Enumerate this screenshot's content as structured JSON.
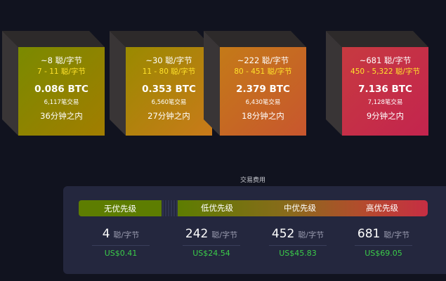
{
  "blocks": [
    {
      "fee_median": "~8 聪/字节",
      "fee_range": "7 - 11 聪/字节",
      "total": "0.086 BTC",
      "tx_count": "6,117笔交易",
      "eta": "36分钟之内",
      "gradient_from": "#7a8a00",
      "gradient_to": "#a27d00"
    },
    {
      "fee_median": "~30 聪/字节",
      "fee_range": "11 - 80 聪/字节",
      "total": "0.353 BTC",
      "tx_count": "6,560笔交易",
      "eta": "27分钟之内",
      "gradient_from": "#9a8a00",
      "gradient_to": "#c97a1a"
    },
    {
      "fee_median": "~222 聪/字节",
      "fee_range": "80 - 451 聪/字节",
      "total": "2.379 BTC",
      "tx_count": "6,430笔交易",
      "eta": "18分钟之内",
      "gradient_from": "#c47a18",
      "gradient_to": "#c8562e"
    },
    {
      "fee_median": "~681 聪/字节",
      "fee_range": "450 - 5,322 聪/字节",
      "total": "7.136 BTC",
      "tx_count": "7,128笔交易",
      "eta": "9分钟之内",
      "gradient_from": "#c63a40",
      "gradient_to": "#c4244e"
    }
  ],
  "fees": {
    "title": "交易费用",
    "priority_labels": {
      "none": "无优先级",
      "low": "低优先级",
      "medium": "中优先级",
      "high": "高优先级"
    },
    "unit": "聪/字节",
    "columns": [
      {
        "rate": "4",
        "fiat": "US$0.41"
      },
      {
        "rate": "242",
        "fiat": "US$24.54"
      },
      {
        "rate": "452",
        "fiat": "US$45.83"
      },
      {
        "rate": "681",
        "fiat": "US$69.05"
      }
    ]
  }
}
